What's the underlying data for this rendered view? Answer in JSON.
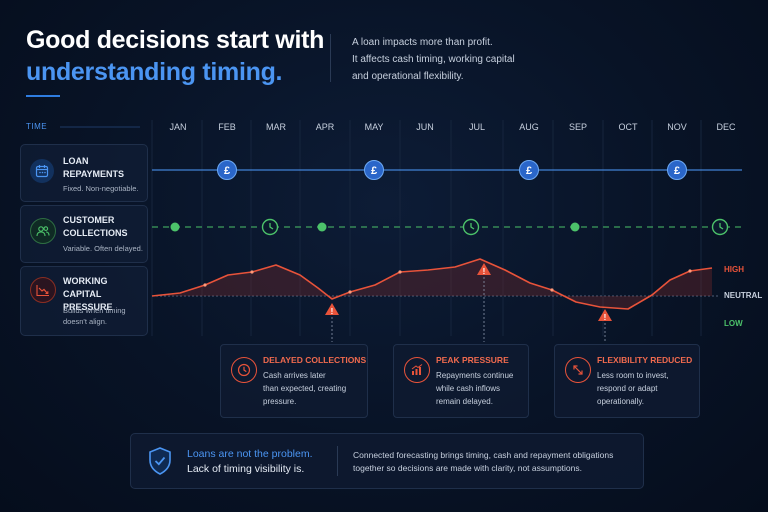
{
  "header": {
    "title_line1": "Good decisions start with",
    "title_line2": "understanding timing.",
    "intro": [
      "A loan impacts more than profit.",
      "It affects cash timing, working capital",
      "and operational flexibility."
    ]
  },
  "timeline": {
    "label": "TIME",
    "months": [
      "JAN",
      "FEB",
      "MAR",
      "APR",
      "MAY",
      "JUN",
      "JUL",
      "AUG",
      "SEP",
      "OCT",
      "NOV",
      "DEC"
    ]
  },
  "rows": [
    {
      "title_lines": [
        "LOAN",
        "REPAYMENTS"
      ],
      "subtitle_lines": [
        "Fixed. Non-negotiable."
      ],
      "icon": "calendar-icon",
      "color": "#4b95f2",
      "payment_months": [
        "FEB",
        "MAY",
        "AUG",
        "NOV"
      ],
      "marker_icon": "pound-icon"
    },
    {
      "title_lines": [
        "CUSTOMER",
        "COLLECTIONS"
      ],
      "subtitle_lines": [
        "Variable. Often delayed."
      ],
      "icon": "users-icon",
      "color": "#4cc26a",
      "dot_months": [
        "JAN",
        "APR",
        "SEP"
      ],
      "clock_months": [
        "MAR",
        "JUL",
        "DEC"
      ]
    },
    {
      "title_lines": [
        "WORKING CAPITAL",
        "PRESSURE"
      ],
      "subtitle_lines": [
        "Builds when timing",
        "doesn't align."
      ],
      "icon": "trend-down-icon",
      "color": "#e8533a"
    }
  ],
  "pressure_levels": {
    "high": "HIGH",
    "neutral": "NEUTRAL",
    "low": "LOW",
    "high_color": "#e8533a",
    "neutral_color": "#c7d0de",
    "low_color": "#4cc26a"
  },
  "callouts": [
    {
      "title": "DELAYED COLLECTIONS",
      "body": [
        "Cash arrives later",
        "than expected, creating",
        "pressure."
      ],
      "icon": "clock-icon"
    },
    {
      "title": "PEAK PRESSURE",
      "body": [
        "Repayments continue",
        "while cash inflows",
        "remain delayed."
      ],
      "icon": "trend-up-icon"
    },
    {
      "title": "FLEXIBILITY REDUCED",
      "body": [
        "Less room to invest,",
        "respond or adapt",
        "operationally."
      ],
      "icon": "diagonal-arrows-icon"
    }
  ],
  "footer": {
    "line1": "Loans are not the problem.",
    "line2": "Lack of timing visibility is.",
    "body": [
      "Connected forecasting brings timing, cash and repayment obligations",
      "together so decisions are made with clarity, not assumptions."
    ],
    "icon": "shield-check-icon"
  }
}
